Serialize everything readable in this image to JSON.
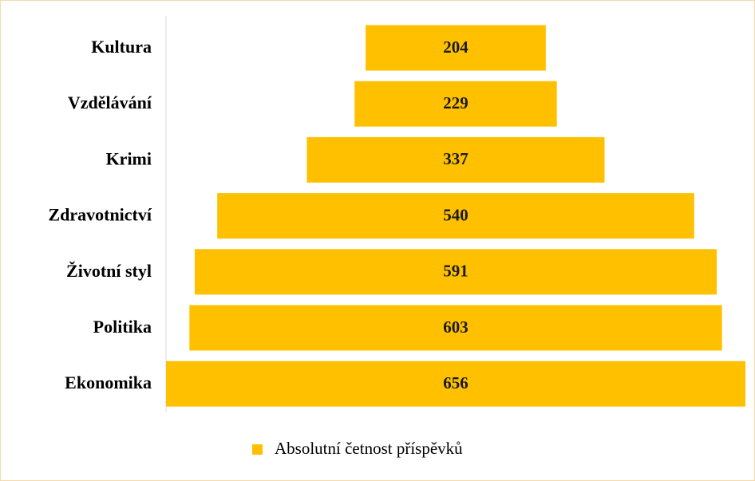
{
  "chart_data": {
    "type": "funnel",
    "categories": [
      "Kultura",
      "Vzdělávání",
      "Krimi",
      "Zdravotnictví",
      "Životní styl",
      "Politika",
      "Ekonomika"
    ],
    "series": [
      {
        "name": "Absolutní četnost příspěvků",
        "color": "#ffc000",
        "values": [
          204,
          229,
          337,
          540,
          591,
          603,
          656
        ]
      }
    ]
  }
}
